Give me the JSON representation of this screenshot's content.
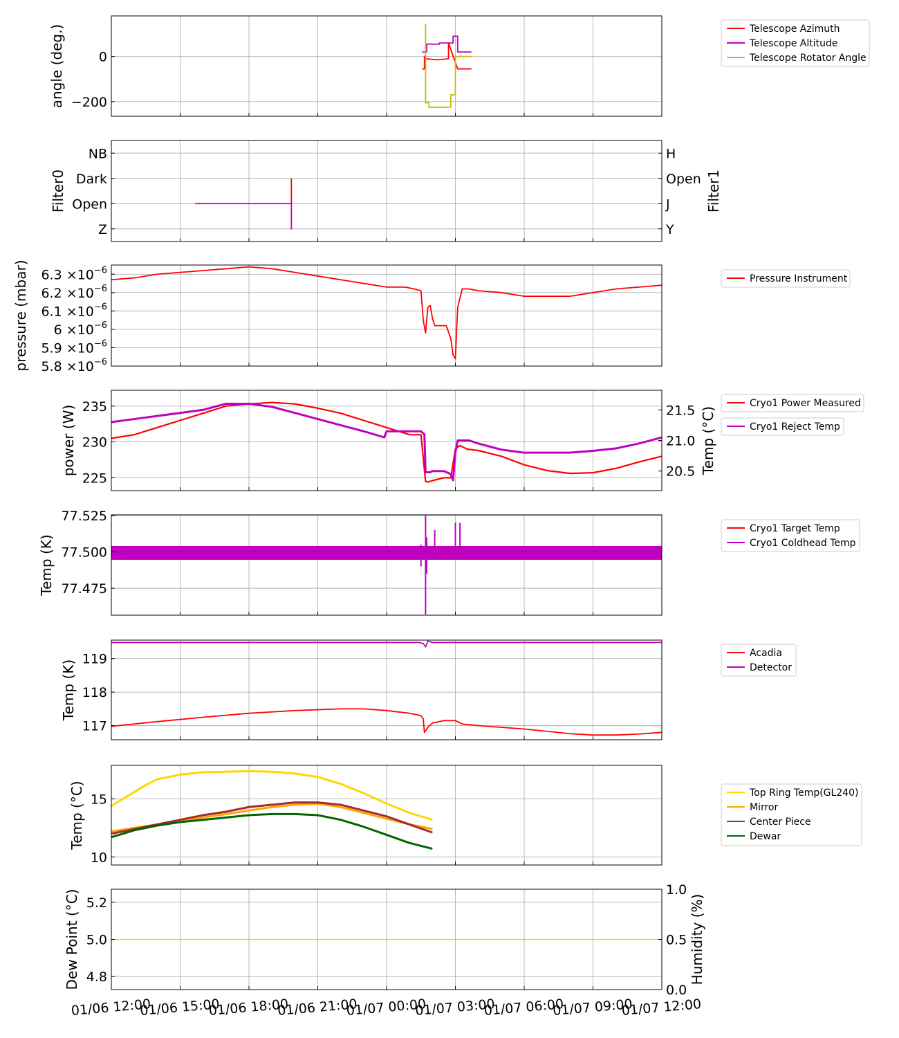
{
  "figure": {
    "background": "#ffffff"
  },
  "x_axis": {
    "tick_labels": [
      "01/06 12:00",
      "01/06 15:00",
      "01/06 18:00",
      "01/06 21:00",
      "01/07 00:00",
      "01/07 03:00",
      "01/07 06:00",
      "01/07 09:00",
      "01/07 12:00"
    ],
    "range_hours": [
      0,
      24
    ]
  },
  "chart_data": [
    {
      "id": "telescope",
      "type": "line",
      "title": "",
      "ylabel": "angle (deg.)",
      "ylim": [
        -265,
        180
      ],
      "yticks": [
        0,
        -200
      ],
      "ytick_labels": [
        "0",
        "−200"
      ],
      "series": [
        {
          "name": "Telescope Azimuth",
          "color": "#ff0000",
          "x": [
            13.55,
            13.65,
            13.65,
            13.7,
            13.7,
            14.2,
            14.2,
            14.7,
            14.7,
            14.7,
            15.1,
            15.1,
            15.7
          ],
          "y": [
            -55,
            -55,
            0,
            0,
            -10,
            -15,
            -15,
            -10,
            60,
            60,
            -55,
            -55,
            -55
          ],
          "step": true
        },
        {
          "name": "Telescope Altitude",
          "color": "#bf00bf",
          "x": [
            13.55,
            13.75,
            13.75,
            14.3,
            14.3,
            14.9,
            14.9,
            15.1,
            15.1,
            15.7
          ],
          "y": [
            20,
            20,
            55,
            55,
            60,
            60,
            90,
            90,
            20,
            20
          ],
          "step": true
        },
        {
          "name": "Telescope Rotator Angle",
          "color": "#bfbf00",
          "x": [
            13.7,
            13.7,
            13.85,
            13.85,
            14.8,
            14.8,
            15.0,
            15.0,
            15.7
          ],
          "y": [
            145,
            -205,
            -205,
            -225,
            -225,
            -170,
            -170,
            0,
            0
          ],
          "step": true
        }
      ]
    },
    {
      "id": "filters",
      "type": "line",
      "ylabel_left": "Filter0",
      "ylabel_right": "Filter1",
      "left_color": "#ff0000",
      "right_color": "#bf00bf",
      "ylim": [
        -0.5,
        3.5
      ],
      "yticks_left": [
        "Z",
        "Open",
        "Dark",
        "NB"
      ],
      "yticks_right": [
        "Y",
        "J",
        "Open",
        "H"
      ],
      "series": [
        {
          "name": "Filter0",
          "color": "#ff0000",
          "x": [
            7.85,
            7.85
          ],
          "y": [
            1,
            2
          ]
        },
        {
          "name": "Filter1",
          "color": "#bf00bf",
          "x": [
            3.65,
            7.85,
            7.85,
            7.85
          ],
          "y": [
            1,
            1,
            0,
            1
          ]
        }
      ]
    },
    {
      "id": "pressure",
      "type": "line",
      "ylabel": "pressure (mbar)",
      "ylim": [
        5.8,
        6.35
      ],
      "yticks": [
        5.8,
        5.9,
        6.0,
        6.1,
        6.2,
        6.3
      ],
      "ytick_mantissa": [
        "5.8",
        "5.9",
        "6",
        "6.1",
        "6.2",
        "6.3"
      ],
      "ytick_base": "×10",
      "ytick_exponent": "−6",
      "series": [
        {
          "name": "Pressure Instrument",
          "color": "#ff0000",
          "x": [
            0,
            1,
            2,
            3,
            4,
            5,
            6,
            7,
            8,
            9,
            10,
            11,
            12,
            12.8,
            13.2,
            13.5,
            13.6,
            13.7,
            13.8,
            13.9,
            14.0,
            14.1,
            14.5,
            14.6,
            14.8,
            14.9,
            15.0,
            15.1,
            15.3,
            15.6,
            16,
            17,
            18,
            19,
            20,
            21,
            22,
            23,
            24
          ],
          "y": [
            6.27,
            6.28,
            6.3,
            6.31,
            6.32,
            6.33,
            6.34,
            6.33,
            6.31,
            6.29,
            6.27,
            6.25,
            6.23,
            6.23,
            6.22,
            6.21,
            6.05,
            5.98,
            6.12,
            6.13,
            6.06,
            6.02,
            6.02,
            6.02,
            5.95,
            5.86,
            5.84,
            6.12,
            6.22,
            6.22,
            6.21,
            6.2,
            6.18,
            6.18,
            6.18,
            6.2,
            6.22,
            6.23,
            6.24
          ]
        }
      ]
    },
    {
      "id": "cryo_power",
      "type": "line",
      "ylabel_left": "power (W)",
      "ylabel_right": "Temp (°C)",
      "left_color": "#ff0000",
      "right_color": "#bf00bf",
      "ylim_left": [
        223.2,
        237.2
      ],
      "yticks_left": [
        225,
        230,
        235
      ],
      "ylim_right": [
        20.18,
        21.82
      ],
      "yticks_right": [
        "20.5",
        "21.0",
        "21.5"
      ],
      "yticks_right_values": [
        20.5,
        21.0,
        21.5
      ],
      "series": [
        {
          "name": "Cryo1 Power Measured",
          "color": "#ff0000",
          "axis": "left",
          "x": [
            0,
            1,
            2,
            3,
            4,
            5,
            6,
            7,
            8,
            9,
            10,
            11,
            12,
            13,
            13.5,
            13.7,
            13.8,
            14.0,
            14.5,
            14.8,
            15.0,
            15.2,
            15.5,
            16,
            17,
            18,
            19,
            20,
            21,
            22,
            23,
            24
          ],
          "y": [
            230.5,
            231,
            232,
            233,
            234,
            235,
            235.3,
            235.5,
            235.3,
            234.7,
            234,
            233,
            232,
            231,
            231,
            224.5,
            224.4,
            224.6,
            225,
            225,
            229,
            229.5,
            229,
            228.8,
            228,
            226.8,
            226,
            225.6,
            225.7,
            226.3,
            227.2,
            228
          ]
        },
        {
          "name": "Cryo1 Reject Temp",
          "color": "#bf00bf",
          "axis": "right",
          "x": [
            0,
            1,
            2,
            3,
            4,
            5,
            6,
            7,
            8,
            9,
            10,
            11,
            11.9,
            12.0,
            12.5,
            13,
            13.5,
            13.65,
            13.7,
            13.9,
            14.0,
            14.5,
            14.8,
            14.9,
            15.0,
            15.1,
            15.3,
            15.6,
            16,
            17,
            18,
            19,
            20,
            21,
            22,
            23,
            24
          ],
          "y": [
            21.3,
            21.35,
            21.4,
            21.45,
            21.5,
            21.6,
            21.6,
            21.55,
            21.45,
            21.35,
            21.25,
            21.15,
            21.05,
            21.15,
            21.15,
            21.15,
            21.15,
            21.1,
            20.48,
            20.48,
            20.5,
            20.5,
            20.45,
            20.35,
            20.8,
            21.0,
            21.0,
            21.0,
            20.95,
            20.85,
            20.8,
            20.8,
            20.8,
            20.83,
            20.87,
            20.95,
            21.05
          ]
        }
      ]
    },
    {
      "id": "cryo_temps",
      "type": "line",
      "ylabel": "Temp (K)",
      "ylim": [
        77.4565,
        77.5255
      ],
      "yticks": [
        77.475,
        77.5,
        77.525
      ],
      "ytick_labels": [
        "77.475",
        "77.500",
        "77.525"
      ],
      "band": [
        77.4946,
        77.5041
      ],
      "series": [
        {
          "name": "Cryo1 Target Temp",
          "color": "#ff0000",
          "x": [
            0,
            24
          ],
          "y": [
            77.5,
            77.5
          ]
        },
        {
          "name": "Cryo1 Coldhead Temp",
          "color": "#bf00bf",
          "spikes": [
            {
              "x": 13.5,
              "ymin": 77.49,
              "ymax": 77.505
            },
            {
              "x": 13.7,
              "ymin": 77.457,
              "ymax": 77.525
            },
            {
              "x": 13.75,
              "ymin": 77.485,
              "ymax": 77.51
            },
            {
              "x": 14.1,
              "ymin": 77.5,
              "ymax": 77.515
            },
            {
              "x": 15.0,
              "ymin": 77.5,
              "ymax": 77.52
            },
            {
              "x": 15.2,
              "ymin": 77.5,
              "ymax": 77.52
            }
          ]
        }
      ]
    },
    {
      "id": "detector",
      "type": "line",
      "ylabel": "Temp (K)",
      "ylim": [
        116.58,
        119.55
      ],
      "yticks": [
        117,
        118,
        119
      ],
      "series": [
        {
          "name": "Acadia",
          "color": "#ff0000",
          "x": [
            0,
            2,
            4,
            6,
            8,
            10,
            11,
            12,
            13,
            13.5,
            13.6,
            13.65,
            13.8,
            14.0,
            14.5,
            15.0,
            15.3,
            16,
            18,
            20,
            21,
            22,
            23,
            24
          ],
          "y": [
            116.98,
            117.12,
            117.25,
            117.37,
            117.45,
            117.5,
            117.5,
            117.45,
            117.37,
            117.3,
            117.2,
            116.8,
            116.95,
            117.08,
            117.15,
            117.15,
            117.05,
            117.0,
            116.9,
            116.76,
            116.72,
            116.72,
            116.75,
            116.8
          ]
        },
        {
          "name": "Detector",
          "color": "#bf00bf",
          "x": [
            0,
            13.4,
            13.6,
            13.7,
            13.8,
            14.0,
            24
          ],
          "y": [
            119.48,
            119.48,
            119.45,
            119.35,
            119.52,
            119.48,
            119.48
          ]
        }
      ]
    },
    {
      "id": "telescope_temps",
      "type": "line",
      "ylabel": "Temp (°C)",
      "ylim": [
        9.3,
        17.9
      ],
      "yticks": [
        10,
        15
      ],
      "series": [
        {
          "name": "Top Ring Temp(GL240)",
          "color": "#ffd700",
          "x": [
            0,
            0.5,
            1,
            1.5,
            2,
            3,
            4,
            5,
            6,
            7,
            8,
            9,
            10,
            11,
            12,
            13,
            14
          ],
          "y": [
            14.4,
            15.0,
            15.6,
            16.2,
            16.7,
            17.1,
            17.3,
            17.35,
            17.4,
            17.35,
            17.2,
            16.9,
            16.3,
            15.5,
            14.6,
            13.8,
            13.2
          ]
        },
        {
          "name": "Mirror",
          "color": "#ffa500",
          "x": [
            0,
            1,
            2,
            3,
            4,
            5,
            6,
            7,
            8,
            9,
            10,
            11,
            12,
            13,
            14
          ],
          "y": [
            12.2,
            12.5,
            12.8,
            13.1,
            13.4,
            13.7,
            14.0,
            14.3,
            14.5,
            14.6,
            14.3,
            13.8,
            13.3,
            12.8,
            12.4
          ]
        },
        {
          "name": "Center Piece",
          "color": "#a52a2a",
          "x": [
            0,
            1,
            2,
            3,
            4,
            5,
            6,
            7,
            8,
            9,
            10,
            11,
            12,
            13,
            14
          ],
          "y": [
            12.0,
            12.4,
            12.8,
            13.2,
            13.6,
            13.9,
            14.3,
            14.5,
            14.7,
            14.7,
            14.5,
            14.0,
            13.5,
            12.8,
            12.1
          ]
        },
        {
          "name": "Dewar",
          "color": "#006400",
          "x": [
            0,
            1,
            2,
            3,
            4,
            5,
            6,
            7,
            8,
            9,
            10,
            11,
            12,
            13,
            14
          ],
          "y": [
            11.7,
            12.3,
            12.7,
            13.0,
            13.2,
            13.4,
            13.6,
            13.7,
            13.7,
            13.6,
            13.2,
            12.6,
            11.9,
            11.2,
            10.7
          ]
        }
      ]
    },
    {
      "id": "weather",
      "type": "line",
      "ylabel_left": "Dew Point (°C)",
      "ylabel_right": "Humidity (%)",
      "ylim_left": [
        4.73,
        5.27
      ],
      "yticks_left": [
        "4.8",
        "5.0",
        "5.2"
      ],
      "yticks_left_values": [
        4.8,
        5.0,
        5.2
      ],
      "ylim_right": [
        0,
        1
      ],
      "yticks_right": [
        "0.0",
        "0.5",
        "1.0"
      ],
      "yticks_right_values": [
        0.0,
        0.5,
        1.0
      ],
      "series": [
        {
          "name": "Dew Point",
          "color": "#ffd700",
          "dashed": true,
          "x": [
            0,
            24
          ],
          "y": [
            5.0,
            5.0
          ]
        }
      ]
    }
  ]
}
